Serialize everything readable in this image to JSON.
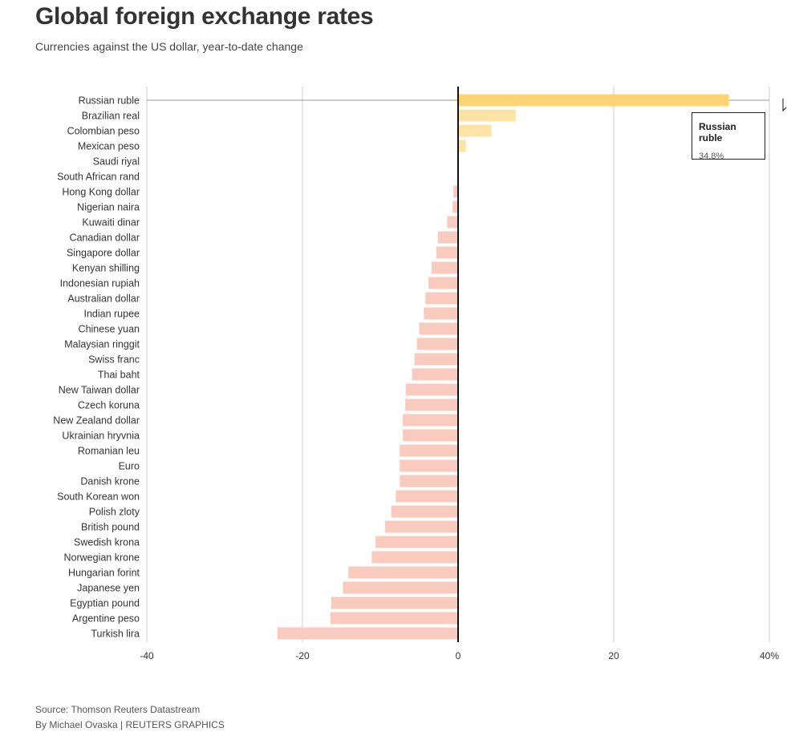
{
  "title": "Global foreign exchange rates",
  "subtitle": "Currencies against the US dollar, year-to-date change",
  "source": "Source: Thomson Reuters Datastream",
  "credit": "By Michael Ovaska | REUTERS GRAPHICS",
  "tooltip": {
    "name": "Russian ruble",
    "value": "34.8%"
  },
  "colors": {
    "highlight_positive": "#fcd473",
    "positive": "#fde4a6",
    "negative": "#f9cbbf",
    "zero_line": "#111111",
    "grid": "#cccccc",
    "hover_line": "#999999"
  },
  "chart_data": {
    "type": "bar",
    "orientation": "horizontal",
    "categories": [
      "Russian ruble",
      "Brazilian real",
      "Colombian peso",
      "Mexican peso",
      "Saudi riyal",
      "South African rand",
      "Hong Kong dollar",
      "Nigerian naira",
      "Kuwaiti dinar",
      "Canadian dollar",
      "Singapore dollar",
      "Kenyan shilling",
      "Indonesian rupiah",
      "Australian dollar",
      "Indian rupee",
      "Chinese yuan",
      "Malaysian ringgit",
      "Swiss franc",
      "Thai baht",
      "New Taiwan dollar",
      "Czech koruna",
      "New Zealand dollar",
      "Ukrainian hryvnia",
      "Romanian leu",
      "Euro",
      "Danish krone",
      "South Korean won",
      "Polish zloty",
      "British pound",
      "Swedish krona",
      "Norwegian krone",
      "Hungarian forint",
      "Japanese yen",
      "Egyptian pound",
      "Argentine peso",
      "Turkish lira"
    ],
    "values": [
      34.8,
      7.4,
      4.3,
      1.0,
      0.0,
      -0.1,
      -0.6,
      -0.7,
      -1.4,
      -2.6,
      -2.8,
      -3.4,
      -3.8,
      -4.2,
      -4.4,
      -5.0,
      -5.3,
      -5.6,
      -5.9,
      -6.7,
      -6.8,
      -7.1,
      -7.1,
      -7.5,
      -7.5,
      -7.5,
      -8.0,
      -8.6,
      -9.4,
      -10.6,
      -11.1,
      -14.1,
      -14.8,
      -16.3,
      -16.4,
      -23.2
    ],
    "highlighted": "Russian ruble",
    "xlim": [
      -40,
      40
    ],
    "xticks": [
      -40,
      -20,
      0,
      20,
      40
    ],
    "xtick_labels": [
      "-40",
      "-20",
      "0",
      "20",
      "40%"
    ],
    "grid": true
  }
}
